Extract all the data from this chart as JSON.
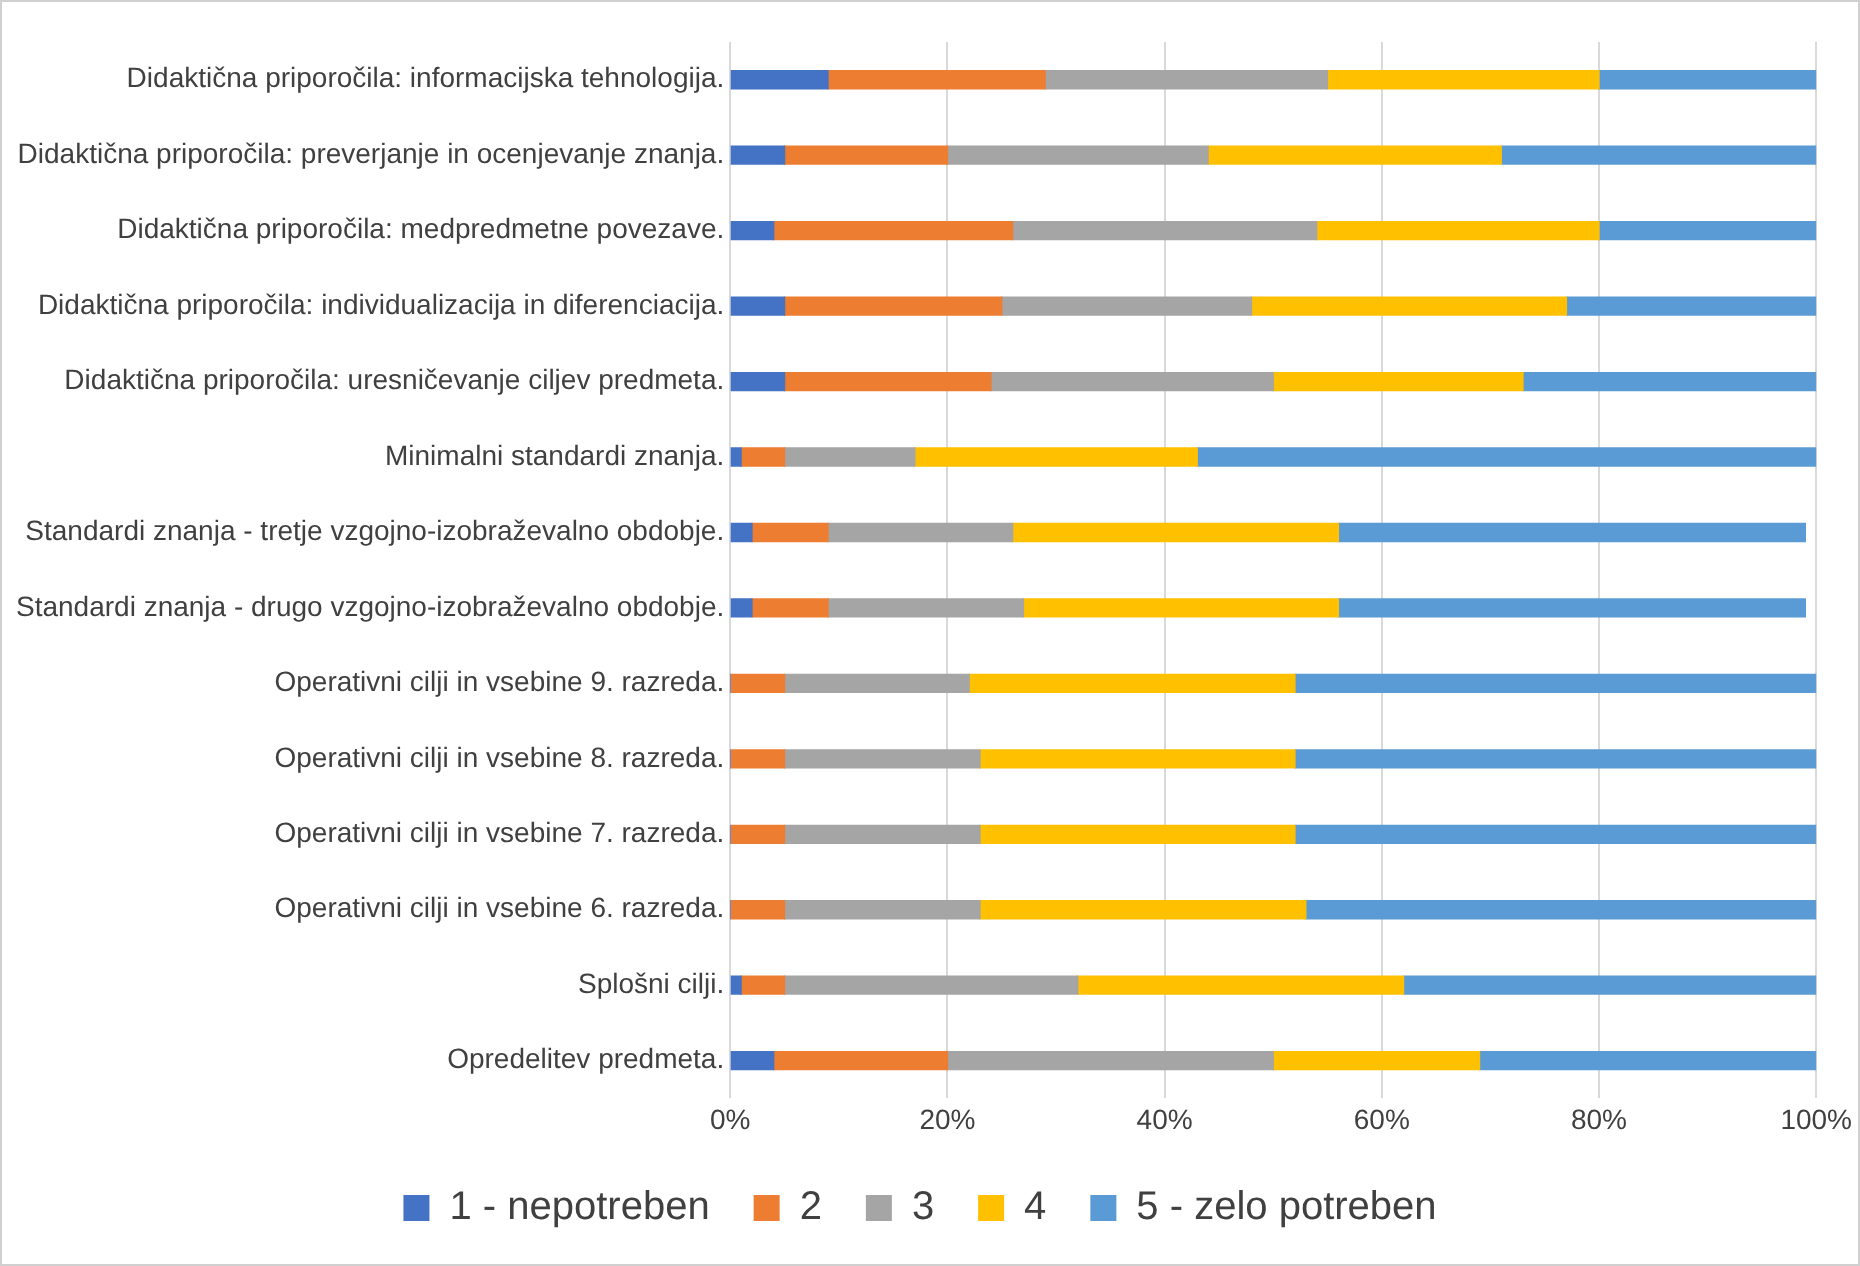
{
  "chart_data": {
    "type": "bar",
    "orientation": "horizontal",
    "stacked": true,
    "categories": [
      "Didaktična priporočila: informacijska tehnologija.",
      "Didaktična priporočila: preverjanje in ocenjevanje znanja.",
      "Didaktična priporočila: medpredmetne povezave.",
      "Didaktična priporočila: individualizacija in diferenciacija.",
      "Didaktična priporočila: uresničevanje ciljev predmeta.",
      "Minimalni standardi znanja.",
      "Standardi znanja - tretje vzgojno-izobraževalno obdobje.",
      "Standardi znanja - drugo vzgojno-izobraževalno obdobje.",
      "Operativni cilji in vsebine 9. razreda.",
      "Operativni cilji in vsebine 8. razreda.",
      "Operativni cilji in vsebine 7. razreda.",
      "Operativni cilji in vsebine 6. razreda.",
      "Splošni cilji.",
      "Opredelitev predmeta."
    ],
    "series": [
      {
        "name": "1 - nepotreben",
        "color": "#4472c4",
        "values": [
          9,
          5,
          4,
          5,
          5,
          1,
          2,
          2,
          0,
          0,
          0,
          0,
          1,
          4
        ]
      },
      {
        "name": "2",
        "color": "#ed7d31",
        "values": [
          20,
          15,
          22,
          20,
          19,
          4,
          7,
          7,
          5,
          5,
          5,
          5,
          4,
          16
        ]
      },
      {
        "name": "3",
        "color": "#a5a5a5",
        "values": [
          26,
          24,
          28,
          23,
          26,
          12,
          17,
          18,
          17,
          18,
          18,
          18,
          27,
          30
        ]
      },
      {
        "name": "4",
        "color": "#ffc000",
        "values": [
          25,
          27,
          26,
          29,
          23,
          26,
          30,
          29,
          30,
          29,
          29,
          30,
          30,
          19
        ]
      },
      {
        "name": "5 - zelo potreben",
        "color": "#5b9bd5",
        "values": [
          20,
          29,
          20,
          23,
          27,
          57,
          43,
          43,
          48,
          48,
          48,
          47,
          38,
          31
        ]
      }
    ],
    "xlim": [
      0,
      100
    ],
    "xticks": [
      {
        "value": 0,
        "label": "0%"
      },
      {
        "value": 20,
        "label": "20%"
      },
      {
        "value": 40,
        "label": "40%"
      },
      {
        "value": 60,
        "label": "60%"
      },
      {
        "value": 80,
        "label": "80%"
      },
      {
        "value": 100,
        "label": "100%"
      }
    ],
    "grid": "x",
    "legend": "bottom"
  }
}
